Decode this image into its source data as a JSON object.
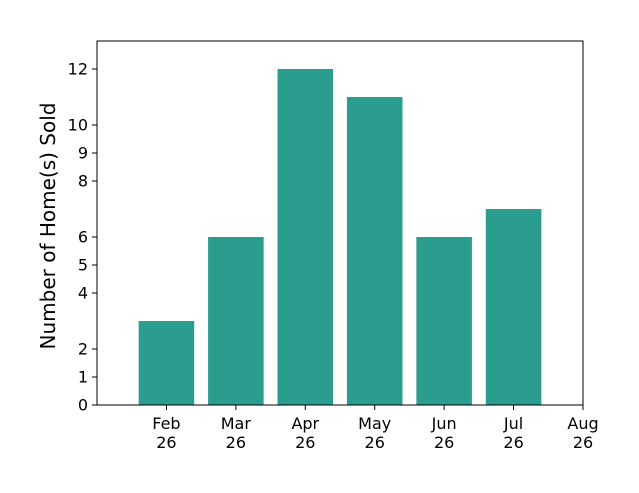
{
  "chart_data": {
    "type": "bar",
    "title": "",
    "xlabel": "",
    "ylabel": "Number of Home(s) Sold",
    "categories": [
      "Feb 26",
      "Mar 26",
      "Apr 26",
      "May 26",
      "Jun 26",
      "Jul 26"
    ],
    "values": [
      3,
      6,
      12,
      11,
      6,
      7
    ],
    "x_ticks": [
      {
        "month": "Feb",
        "year": "26"
      },
      {
        "month": "Mar",
        "year": "26"
      },
      {
        "month": "Apr",
        "year": "26"
      },
      {
        "month": "May",
        "year": "26"
      },
      {
        "month": "Jun",
        "year": "26"
      },
      {
        "month": "Jul",
        "year": "26"
      },
      {
        "month": "Aug",
        "year": "26"
      }
    ],
    "y_ticks": [
      0,
      1,
      2,
      4,
      5,
      6,
      8,
      9,
      10,
      12
    ],
    "ylim": [
      0,
      13
    ],
    "xlim": [
      -1,
      6
    ],
    "bar_color": "#2a9d8f",
    "grid": false,
    "legend": false
  }
}
